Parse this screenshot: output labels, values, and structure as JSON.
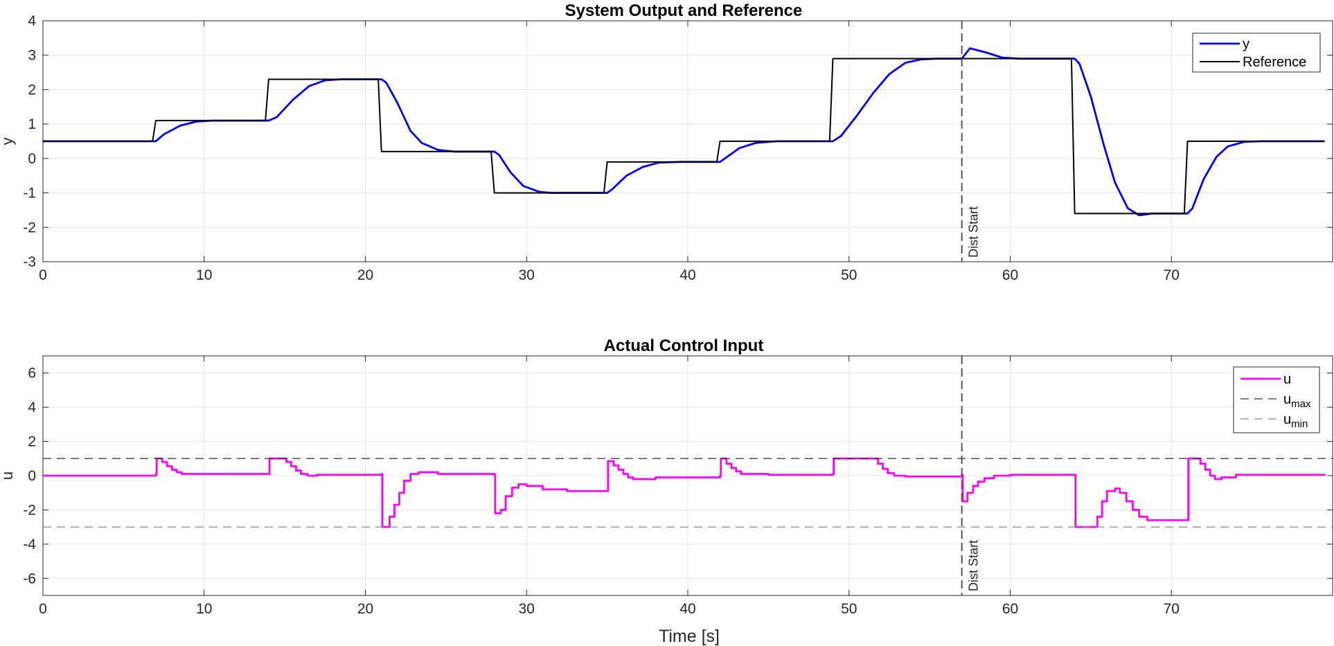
{
  "chart_data": [
    {
      "type": "line",
      "title": "System Output and Reference",
      "xlabel": "",
      "ylabel": "y",
      "xlim": [
        0,
        80
      ],
      "ylim": [
        -3,
        4
      ],
      "xticks": [
        0,
        10,
        20,
        30,
        40,
        50,
        60,
        70
      ],
      "yticks": [
        -3,
        -2,
        -1,
        0,
        1,
        2,
        3,
        4
      ],
      "grid": true,
      "legend": "top-right",
      "vline": {
        "x": 57,
        "label": "Dist Start",
        "color": "#555555"
      },
      "series": [
        {
          "name": "y",
          "color": "#0000ff",
          "points": [
            [
              0,
              0.5
            ],
            [
              3,
              0.5
            ],
            [
              6,
              0.5
            ],
            [
              7,
              0.5
            ],
            [
              7.5,
              0.7
            ],
            [
              8.5,
              0.95
            ],
            [
              9.5,
              1.07
            ],
            [
              10.5,
              1.1
            ],
            [
              14,
              1.1
            ],
            [
              14.5,
              1.2
            ],
            [
              15.5,
              1.7
            ],
            [
              16.5,
              2.1
            ],
            [
              17.5,
              2.27
            ],
            [
              18.5,
              2.3
            ],
            [
              21,
              2.3
            ],
            [
              21.3,
              2.2
            ],
            [
              22,
              1.6
            ],
            [
              22.8,
              0.8
            ],
            [
              23.5,
              0.45
            ],
            [
              24.5,
              0.25
            ],
            [
              25.5,
              0.2
            ],
            [
              28,
              0.2
            ],
            [
              28.3,
              0.1
            ],
            [
              29,
              -0.4
            ],
            [
              29.8,
              -0.8
            ],
            [
              30.8,
              -0.97
            ],
            [
              31.5,
              -1.0
            ],
            [
              35,
              -1.0
            ],
            [
              35.3,
              -0.9
            ],
            [
              36.2,
              -0.5
            ],
            [
              37.2,
              -0.25
            ],
            [
              38.2,
              -0.12
            ],
            [
              39.5,
              -0.1
            ],
            [
              42,
              -0.1
            ],
            [
              42.3,
              0.0
            ],
            [
              43.2,
              0.3
            ],
            [
              44.2,
              0.45
            ],
            [
              45.5,
              0.5
            ],
            [
              49,
              0.5
            ],
            [
              49.5,
              0.65
            ],
            [
              50.5,
              1.25
            ],
            [
              51.5,
              1.9
            ],
            [
              52.5,
              2.45
            ],
            [
              53.5,
              2.78
            ],
            [
              54.5,
              2.88
            ],
            [
              55.5,
              2.9
            ],
            [
              57,
              2.9
            ],
            [
              57.5,
              3.2
            ],
            [
              58.5,
              3.08
            ],
            [
              59.5,
              2.93
            ],
            [
              60.5,
              2.9
            ],
            [
              64,
              2.9
            ],
            [
              64.3,
              2.75
            ],
            [
              65,
              1.8
            ],
            [
              65.8,
              0.4
            ],
            [
              66.5,
              -0.7
            ],
            [
              67.3,
              -1.45
            ],
            [
              68,
              -1.65
            ],
            [
              68.8,
              -1.6
            ],
            [
              71,
              -1.6
            ],
            [
              71.3,
              -1.45
            ],
            [
              72,
              -0.6
            ],
            [
              72.8,
              0.05
            ],
            [
              73.5,
              0.35
            ],
            [
              74.5,
              0.48
            ],
            [
              75.5,
              0.5
            ],
            [
              79.5,
              0.5
            ]
          ]
        },
        {
          "name": "Reference",
          "color": "#000000",
          "points": [
            [
              0,
              0.5
            ],
            [
              6.8,
              0.5
            ],
            [
              7,
              1.1
            ],
            [
              13.8,
              1.1
            ],
            [
              14,
              2.3
            ],
            [
              20.8,
              2.3
            ],
            [
              21,
              0.2
            ],
            [
              27.8,
              0.2
            ],
            [
              28,
              -1.0
            ],
            [
              34.8,
              -1.0
            ],
            [
              35,
              -0.1
            ],
            [
              41.8,
              -0.1
            ],
            [
              42,
              0.5
            ],
            [
              48.8,
              0.5
            ],
            [
              49,
              2.9
            ],
            [
              63.8,
              2.9
            ],
            [
              64,
              -1.6
            ],
            [
              70.8,
              -1.6
            ],
            [
              71,
              0.5
            ],
            [
              79.5,
              0.5
            ]
          ]
        }
      ]
    },
    {
      "type": "line",
      "title": "Actual Control Input",
      "xlabel": "Time [s]",
      "ylabel": "u",
      "xlim": [
        0,
        80
      ],
      "ylim": [
        -7,
        7
      ],
      "xticks": [
        0,
        10,
        20,
        30,
        40,
        50,
        60,
        70
      ],
      "yticks": [
        -6,
        -4,
        -2,
        0,
        2,
        4,
        6
      ],
      "grid": true,
      "legend": "top-right",
      "vline": {
        "x": 57,
        "label": "Dist Start",
        "color": "#555555"
      },
      "series": [
        {
          "name": "u",
          "color": "#ff00ff",
          "step": true,
          "points": [
            [
              0,
              0
            ],
            [
              7,
              0.1
            ],
            [
              7.05,
              1.0
            ],
            [
              7.4,
              0.8
            ],
            [
              7.7,
              0.55
            ],
            [
              8,
              0.35
            ],
            [
              8.3,
              0.2
            ],
            [
              8.6,
              0.1
            ],
            [
              14,
              0.1
            ],
            [
              14.05,
              1.0
            ],
            [
              15.1,
              0.8
            ],
            [
              15.4,
              0.55
            ],
            [
              15.7,
              0.3
            ],
            [
              16,
              0.1
            ],
            [
              16.4,
              0.0
            ],
            [
              17,
              0.05
            ],
            [
              21,
              0.1
            ],
            [
              21.05,
              -3.0
            ],
            [
              21.5,
              -2.4
            ],
            [
              21.8,
              -1.7
            ],
            [
              22.1,
              -1.0
            ],
            [
              22.4,
              -0.3
            ],
            [
              22.8,
              0.1
            ],
            [
              23.3,
              0.2
            ],
            [
              24.5,
              0.1
            ],
            [
              28,
              0.05
            ],
            [
              28.05,
              -2.2
            ],
            [
              28.4,
              -2.0
            ],
            [
              28.7,
              -1.2
            ],
            [
              29.1,
              -0.7
            ],
            [
              29.5,
              -0.5
            ],
            [
              30,
              -0.6
            ],
            [
              31,
              -0.8
            ],
            [
              32.5,
              -0.9
            ],
            [
              35,
              -0.9
            ],
            [
              35.05,
              0.85
            ],
            [
              35.4,
              0.6
            ],
            [
              35.7,
              0.35
            ],
            [
              36,
              0.1
            ],
            [
              36.3,
              -0.1
            ],
            [
              36.6,
              -0.2
            ],
            [
              38,
              -0.1
            ],
            [
              42,
              0.0
            ],
            [
              42.05,
              1.0
            ],
            [
              42.4,
              0.7
            ],
            [
              42.7,
              0.45
            ],
            [
              43,
              0.25
            ],
            [
              43.3,
              0.1
            ],
            [
              45,
              0.05
            ],
            [
              49,
              0.1
            ],
            [
              49.05,
              1.0
            ],
            [
              51.8,
              0.7
            ],
            [
              52.1,
              0.4
            ],
            [
              52.4,
              0.15
            ],
            [
              52.8,
              0.0
            ],
            [
              53.5,
              -0.05
            ],
            [
              57,
              0.05
            ],
            [
              57.05,
              -1.5
            ],
            [
              57.35,
              -1.0
            ],
            [
              57.7,
              -0.6
            ],
            [
              58,
              -0.35
            ],
            [
              58.4,
              -0.15
            ],
            [
              59,
              0.0
            ],
            [
              60,
              0.05
            ],
            [
              64,
              0.05
            ],
            [
              64.05,
              -3.0
            ],
            [
              65.4,
              -2.4
            ],
            [
              65.7,
              -1.5
            ],
            [
              66,
              -0.9
            ],
            [
              66.5,
              -0.75
            ],
            [
              66.8,
              -1.0
            ],
            [
              67.2,
              -1.5
            ],
            [
              67.6,
              -2.0
            ],
            [
              68,
              -2.4
            ],
            [
              68.5,
              -2.6
            ],
            [
              70,
              -2.6
            ],
            [
              71,
              -2.6
            ],
            [
              71.05,
              1.0
            ],
            [
              71.8,
              0.7
            ],
            [
              72.1,
              0.35
            ],
            [
              72.4,
              0.0
            ],
            [
              72.7,
              -0.2
            ],
            [
              73.1,
              -0.1
            ],
            [
              74,
              0.05
            ],
            [
              79.5,
              0.1
            ]
          ]
        },
        {
          "name": "u_max",
          "color": "#333333",
          "dashed": true,
          "points": [
            [
              0,
              1
            ],
            [
              80,
              1
            ]
          ]
        },
        {
          "name": "u_min",
          "color": "#888888",
          "dashed": true,
          "points": [
            [
              0,
              -3
            ],
            [
              80,
              -3
            ]
          ]
        }
      ],
      "legend_entries": [
        {
          "base": "u",
          "sub": "",
          "color": "#ff00ff",
          "dashed": false
        },
        {
          "base": "u",
          "sub": "max",
          "color": "#333333",
          "dashed": true
        },
        {
          "base": "u",
          "sub": "min",
          "color": "#888888",
          "dashed": true
        }
      ]
    }
  ]
}
